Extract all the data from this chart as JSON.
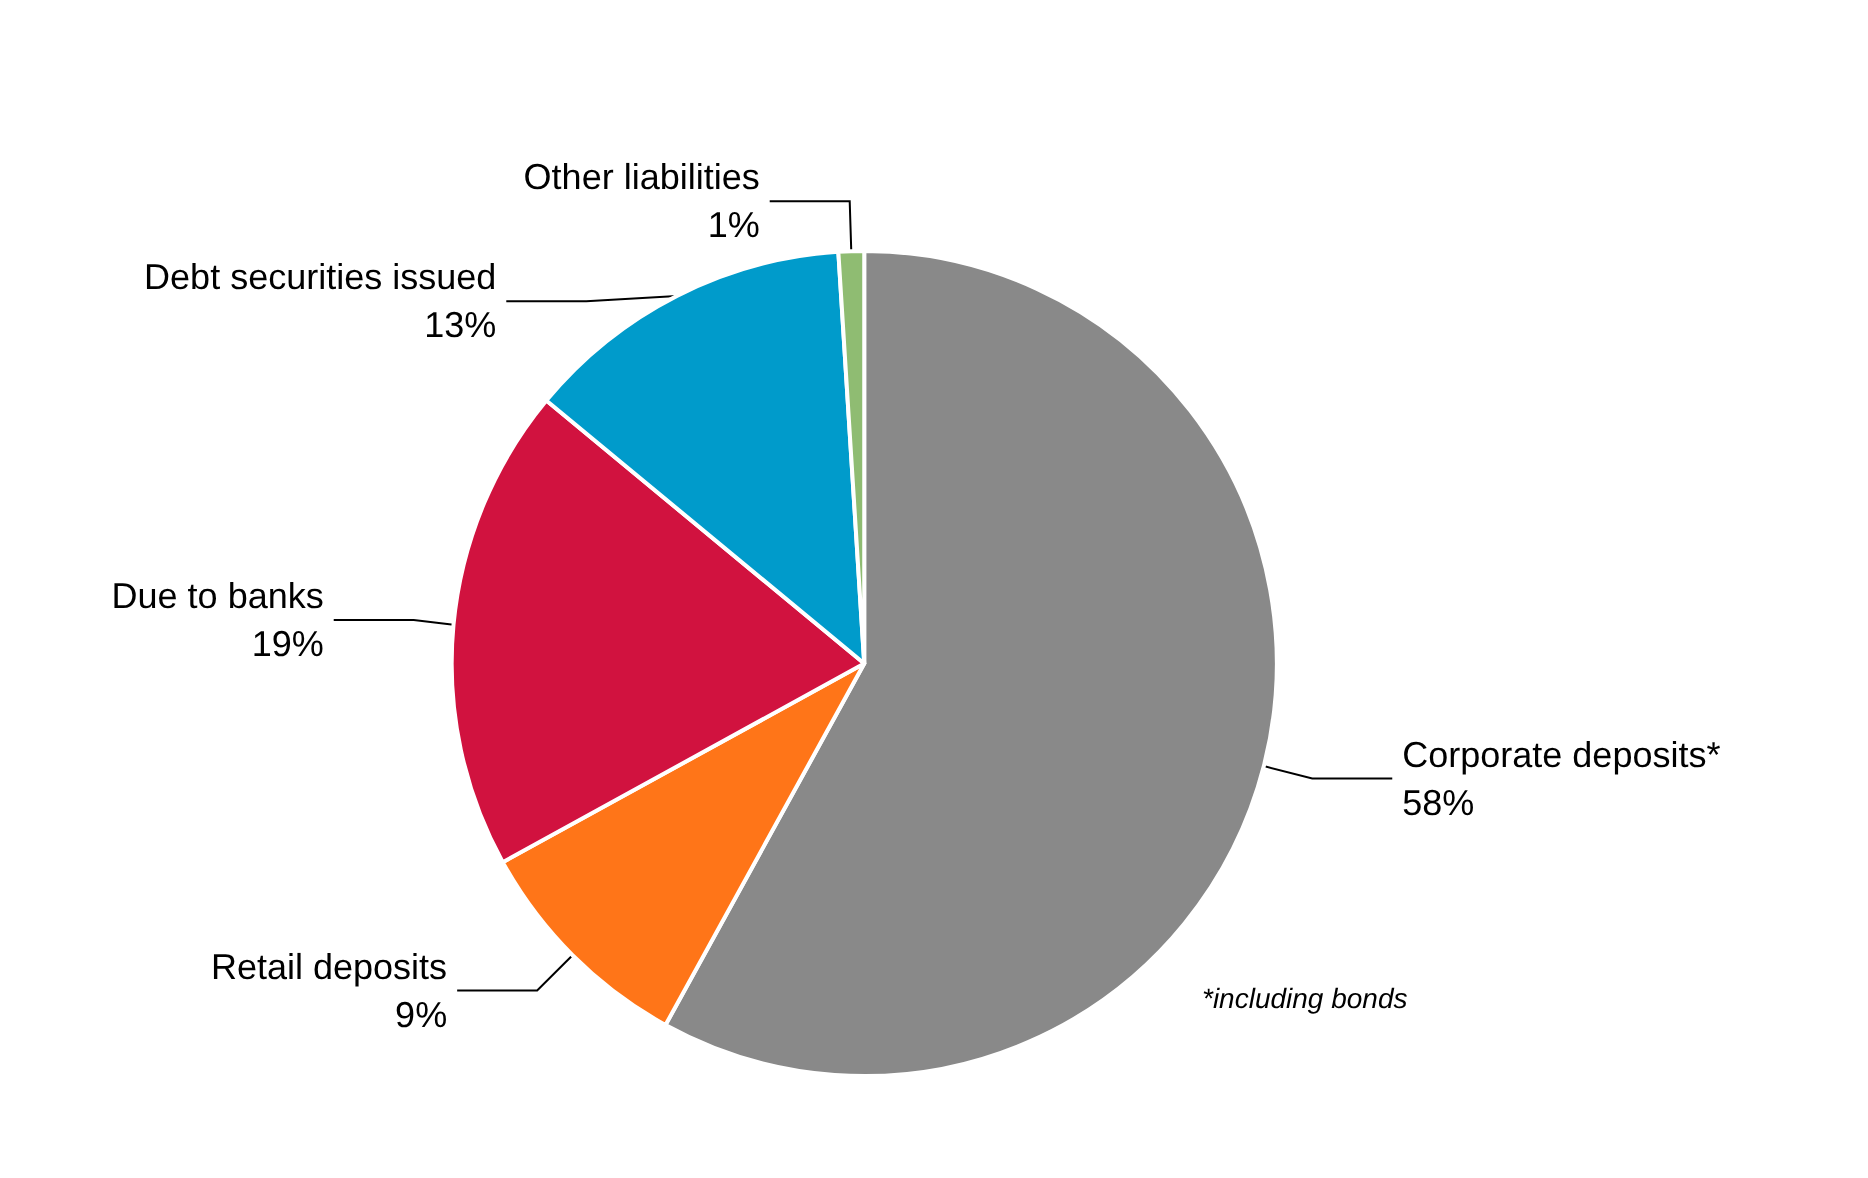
{
  "chart_data": {
    "type": "pie",
    "categories": [
      "Corporate deposits*",
      "Retail deposits",
      "Due to banks",
      "Debt securities issued",
      "Other liabilities"
    ],
    "values": [
      58,
      9,
      19,
      13,
      1
    ],
    "value_labels": [
      "58%",
      "9%",
      "19%",
      "13%",
      "1%"
    ],
    "colors": [
      "#898989",
      "#ff7518",
      "#d1123f",
      "#009bcb",
      "#8fbc72"
    ],
    "annotations": [
      "*including bonds"
    ],
    "legend": false
  }
}
